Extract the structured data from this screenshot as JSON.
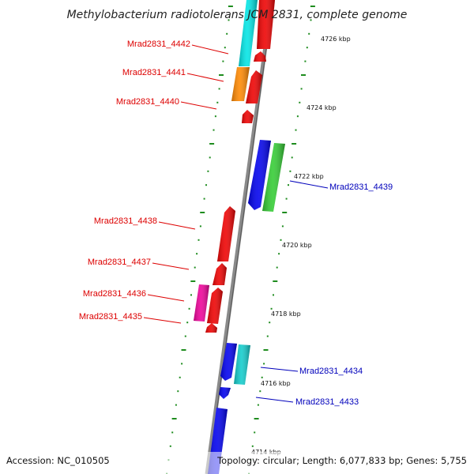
{
  "map": {
    "title": "Methylobacterium radiotolerans JCM 2831, complete genome",
    "accession": "Accession: NC_010505",
    "summary": "Topology: circular; Length: 6,077,833 bp; Genes: 5,755"
  },
  "colors": {
    "backbone": "#8a8a8a",
    "tick": "#1e8c1e",
    "left_label": "#dd0000",
    "right_label": "#0000bb",
    "red": "#ee0000",
    "cyan": "#00e5e5",
    "orange": "#ff8800",
    "blue": "#0000ee",
    "green": "#33cc33",
    "magenta": "#ee0099",
    "teal": "#11cccc"
  },
  "gene_labels_left": [
    {
      "id": "4442",
      "text": "Mrad2831_4442"
    },
    {
      "id": "4441",
      "text": "Mrad2831_4441"
    },
    {
      "id": "4440",
      "text": "Mrad2831_4440"
    },
    {
      "id": "4438",
      "text": "Mrad2831_4438"
    },
    {
      "id": "4437",
      "text": "Mrad2831_4437"
    },
    {
      "id": "4436",
      "text": "Mrad2831_4436"
    },
    {
      "id": "4435",
      "text": "Mrad2831_4435"
    }
  ],
  "gene_labels_right": [
    {
      "id": "4439",
      "text": "Mrad2831_4439"
    },
    {
      "id": "4434",
      "text": "Mrad2831_4434"
    },
    {
      "id": "4433",
      "text": "Mrad2831_4433"
    }
  ],
  "kbp_labels": [
    "4726 kbp",
    "4724 kbp",
    "4722 kbp",
    "4720 kbp",
    "4718 kbp",
    "4716 kbp",
    "4714 kbp"
  ]
}
